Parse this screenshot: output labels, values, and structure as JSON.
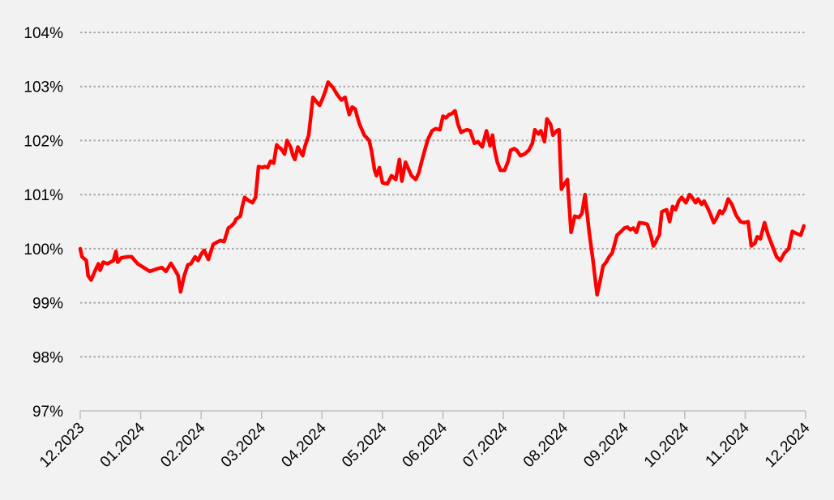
{
  "chart_data": {
    "type": "line",
    "title": "",
    "xlabel": "",
    "ylabel": "",
    "ylim": [
      97,
      104
    ],
    "y_ticks": [
      97,
      98,
      99,
      100,
      101,
      102,
      103,
      104
    ],
    "y_tick_labels": [
      "97%",
      "98%",
      "99%",
      "100%",
      "101%",
      "102%",
      "103%",
      "104%"
    ],
    "x_tick_labels": [
      "12.2023",
      "01.2024",
      "02.2024",
      "03.2024",
      "04.2024",
      "05.2024",
      "06.2024",
      "07.2024",
      "08.2024",
      "09.2024",
      "10.2024",
      "11.2024",
      "12.2024"
    ],
    "grid": "horizontal dotted",
    "series": [
      {
        "color": "#ff0000",
        "x_month": [
          0,
          0.03,
          0.1,
          0.13,
          0.18,
          0.25,
          0.3,
          0.33,
          0.38,
          0.45,
          0.55,
          0.59,
          0.62,
          0.68,
          0.78,
          0.85,
          0.95,
          1.05,
          1.15,
          1.28,
          1.35,
          1.42,
          1.5,
          1.57,
          1.62,
          1.66,
          1.72,
          1.78,
          1.83,
          1.9,
          1.95,
          2.0,
          2.05,
          2.12,
          2.2,
          2.26,
          2.32,
          2.38,
          2.45,
          2.5,
          2.55,
          2.58,
          2.65,
          2.68,
          2.72,
          2.75,
          2.8,
          2.85,
          2.9,
          2.95,
          3.02,
          3.05,
          3.1,
          3.15,
          3.2,
          3.25,
          3.28,
          3.32,
          3.38,
          3.42,
          3.48,
          3.52,
          3.55,
          3.6,
          3.68,
          3.72,
          3.78,
          3.85,
          3.92,
          3.96,
          4.0,
          4.05,
          4.1,
          4.18,
          4.25,
          4.32,
          4.38,
          4.45,
          4.5,
          4.55,
          4.58,
          4.62,
          4.7,
          4.78,
          4.82,
          4.87,
          4.9,
          4.95,
          5.0,
          5.08,
          5.15,
          5.22,
          5.28,
          5.32,
          5.38,
          5.42,
          5.48,
          5.55,
          5.6,
          5.65,
          5.7,
          5.75,
          5.82,
          5.88,
          5.95,
          6.0,
          6.05,
          6.1,
          6.15,
          6.2,
          6.25,
          6.3,
          6.35,
          6.4,
          6.45,
          6.52,
          6.58,
          6.65,
          6.72,
          6.78,
          6.82,
          6.85,
          6.9,
          6.95,
          7.02,
          7.08,
          7.12,
          7.18,
          7.22,
          7.28,
          7.35,
          7.42,
          7.48,
          7.52,
          7.58,
          7.62,
          7.68,
          7.72,
          7.78,
          7.82,
          7.88,
          7.92,
          7.96,
          8.0,
          8.06,
          8.12,
          8.18,
          8.25,
          8.3,
          8.35,
          8.42,
          8.48,
          8.55,
          8.6,
          8.65,
          8.7,
          8.75,
          8.8,
          8.88,
          8.95,
          9.0,
          9.05,
          9.1,
          9.15,
          9.2,
          9.25,
          9.32,
          9.38,
          9.42,
          9.45,
          9.48,
          9.52,
          9.55,
          9.58,
          9.62,
          9.65,
          9.7,
          9.75,
          9.8,
          9.85,
          9.9,
          9.95,
          10.02,
          10.08,
          10.12,
          10.18,
          10.22,
          10.28,
          10.32,
          10.38,
          10.42,
          10.48,
          10.52,
          10.58,
          10.62,
          10.66,
          10.72,
          10.78,
          10.85,
          10.92,
          10.98,
          11.05,
          11.1,
          11.16,
          11.2,
          11.25,
          11.32,
          11.38,
          11.45,
          11.52,
          11.58,
          11.65,
          11.72,
          11.78,
          11.85,
          11.92,
          11.97
        ],
        "values": [
          100.0,
          99.85,
          99.78,
          99.5,
          99.42,
          99.6,
          99.72,
          99.6,
          99.75,
          99.72,
          99.78,
          99.95,
          99.75,
          99.83,
          99.85,
          99.85,
          99.72,
          99.65,
          99.58,
          99.63,
          99.65,
          99.58,
          99.73,
          99.6,
          99.5,
          99.2,
          99.5,
          99.7,
          99.72,
          99.85,
          99.78,
          99.9,
          99.97,
          99.8,
          100.08,
          100.12,
          100.15,
          100.13,
          100.38,
          100.42,
          100.48,
          100.55,
          100.6,
          100.78,
          100.95,
          100.92,
          100.88,
          100.85,
          100.95,
          101.52,
          101.5,
          101.52,
          101.5,
          101.62,
          101.58,
          101.92,
          101.88,
          101.85,
          101.75,
          102.0,
          101.88,
          101.72,
          101.65,
          101.88,
          101.72,
          101.9,
          102.1,
          102.8,
          102.7,
          102.65,
          102.75,
          102.9,
          103.08,
          102.98,
          102.85,
          102.75,
          102.8,
          102.48,
          102.62,
          102.58,
          102.45,
          102.3,
          102.1,
          102.0,
          101.8,
          101.45,
          101.35,
          101.5,
          101.22,
          101.2,
          101.35,
          101.28,
          101.65,
          101.25,
          101.6,
          101.5,
          101.35,
          101.28,
          101.4,
          101.62,
          101.82,
          102.02,
          102.18,
          102.22,
          102.2,
          102.45,
          102.42,
          102.48,
          102.5,
          102.55,
          102.3,
          102.15,
          102.18,
          102.2,
          102.18,
          101.95,
          101.98,
          101.88,
          102.18,
          101.9,
          102.1,
          101.85,
          101.6,
          101.45,
          101.45,
          101.62,
          101.82,
          101.85,
          101.82,
          101.72,
          101.75,
          101.82,
          101.95,
          102.2,
          102.12,
          102.18,
          101.98,
          102.4,
          102.3,
          102.1,
          102.18,
          102.2,
          101.1,
          101.18,
          101.28,
          100.3,
          100.6,
          100.58,
          100.65,
          101.0,
          100.3,
          99.8,
          99.15,
          99.4,
          99.68,
          99.75,
          99.85,
          99.92,
          100.25,
          100.32,
          100.38,
          100.4,
          100.35,
          100.38,
          100.3,
          100.48,
          100.47,
          100.45,
          100.32,
          100.2,
          100.05,
          100.12,
          100.2,
          100.25,
          100.68,
          100.7,
          100.72,
          100.5,
          100.78,
          100.72,
          100.88,
          100.95,
          100.85,
          101.0,
          100.95,
          100.85,
          100.92,
          100.82,
          100.88,
          100.75,
          100.65,
          100.48,
          100.55,
          100.7,
          100.65,
          100.72,
          100.92,
          100.82,
          100.62,
          100.5,
          100.48,
          100.5,
          100.05,
          100.1,
          100.22,
          100.18,
          100.48,
          100.25,
          100.05,
          99.85,
          99.78,
          99.92,
          100.0,
          100.32,
          100.28,
          100.25,
          100.42
        ]
      }
    ]
  }
}
